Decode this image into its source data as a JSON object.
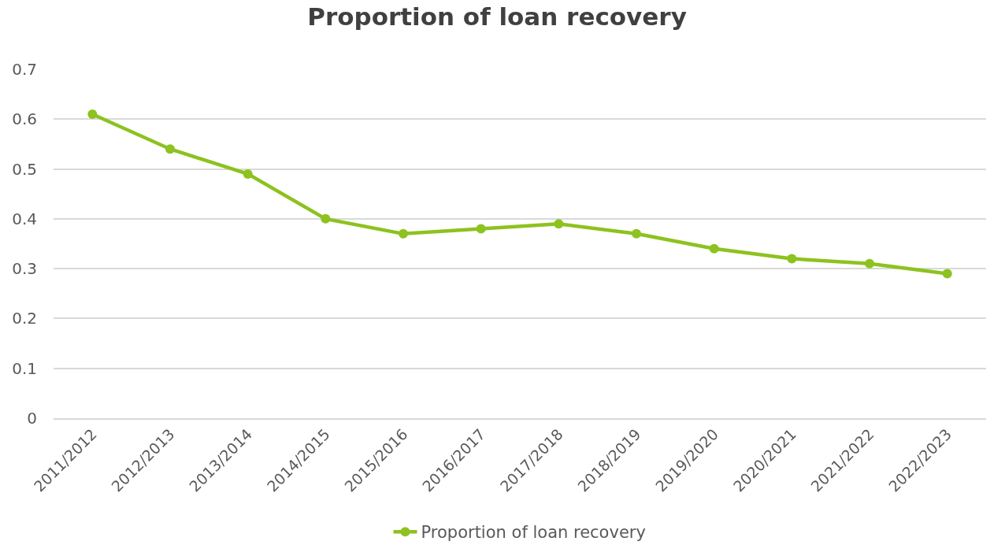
{
  "chart_data": {
    "type": "line",
    "title": "Proportion of loan recovery",
    "categories": [
      "2011/2012",
      "2012/2013",
      "2013/2014",
      "2014/2015",
      "2015/2016",
      "2016/2017",
      "2017/2018",
      "2018/2019",
      "2019/2020",
      "2020/2021",
      "2021/2022",
      "2022/2023"
    ],
    "series": [
      {
        "name": "Proportion of loan recovery",
        "color": "#8dc21f",
        "values": [
          0.61,
          0.54,
          0.49,
          0.4,
          0.37,
          0.38,
          0.39,
          0.37,
          0.34,
          0.32,
          0.31,
          0.29
        ]
      }
    ],
    "ylim": [
      0,
      0.7
    ],
    "yticks": [
      0,
      0.1,
      0.2,
      0.3,
      0.4,
      0.5,
      0.6,
      0.7
    ],
    "grid": "y",
    "legend": "bottom",
    "marker": "circle",
    "line_style": "solid"
  }
}
